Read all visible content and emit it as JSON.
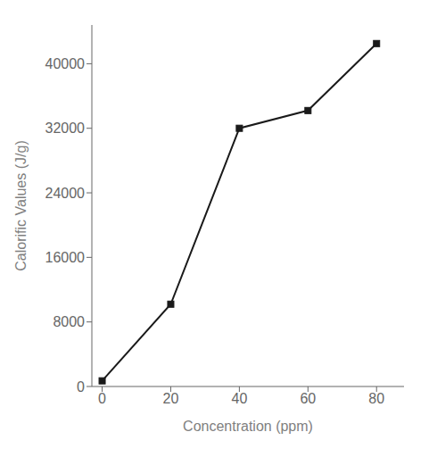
{
  "chart_data": {
    "type": "line",
    "xlabel": "Concentration (ppm)",
    "ylabel": "Calorific Values (J/g)",
    "x": [
      0,
      20,
      40,
      60,
      80
    ],
    "values": [
      700,
      10200,
      32000,
      34200,
      42500
    ],
    "xlim": [
      -3,
      88
    ],
    "ylim": [
      0,
      44800
    ],
    "xticks": [
      0,
      20,
      40,
      60,
      80
    ],
    "yticks": [
      0,
      8000,
      16000,
      24000,
      32000,
      40000
    ],
    "color": "#1a1a1a",
    "marker": "square",
    "grid": false
  }
}
